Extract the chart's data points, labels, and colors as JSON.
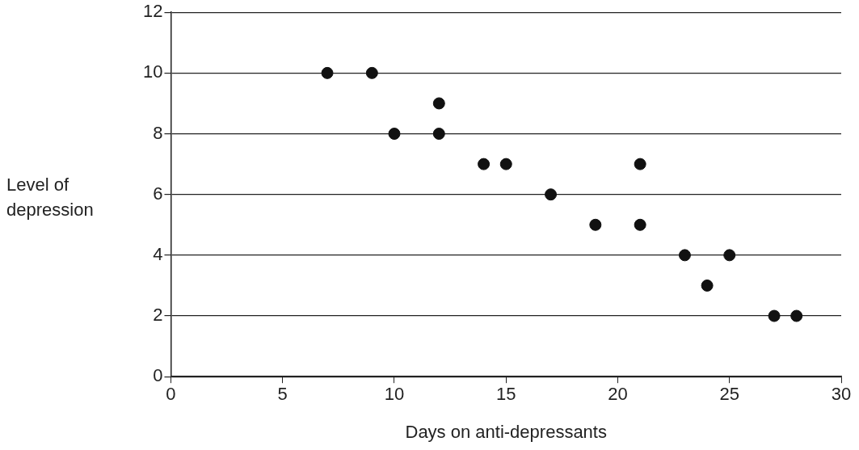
{
  "chart_data": {
    "type": "scatter",
    "xlabel": "Days on anti-depressants",
    "ylabel": "Level of depression",
    "x": [
      7,
      9,
      10,
      12,
      12,
      14,
      15,
      17,
      19,
      21,
      21,
      23,
      24,
      25,
      27,
      28
    ],
    "values": [
      10,
      10,
      8,
      9,
      8,
      7,
      7,
      6,
      5,
      7,
      5,
      4,
      3,
      4,
      2,
      2
    ],
    "color": "#111111",
    "marker": "circle",
    "xlim": [
      0,
      30
    ],
    "xticks": [
      0,
      5,
      10,
      15,
      20,
      25,
      30
    ],
    "ylim": [
      0,
      12
    ],
    "yticks": [
      0,
      2,
      4,
      6,
      8,
      10,
      12
    ],
    "grid": "y"
  }
}
